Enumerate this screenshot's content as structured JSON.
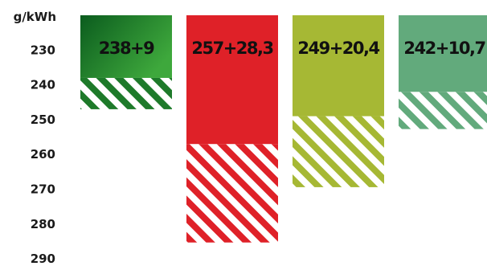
{
  "chart_data": {
    "type": "bar",
    "stacked": true,
    "unit": "g/kWh",
    "y_ticks": [
      230,
      240,
      250,
      260,
      270,
      280,
      290
    ],
    "ylim": [
      220,
      290
    ],
    "y_inverted": true,
    "grid": false,
    "bars": [
      {
        "label": "238+9",
        "base": 238,
        "extra": 9,
        "color_start": "#0b5c1e",
        "color_end": "#3ea83c",
        "gradient": true,
        "stripe_color": "#1e7a2a"
      },
      {
        "label": "257+28,3",
        "base": 257,
        "extra": 28.3,
        "color_start": "#df2128",
        "color_end": "#df2128",
        "gradient": false,
        "stripe_color": "#df2128"
      },
      {
        "label": "249+20,4",
        "base": 249,
        "extra": 20.4,
        "color_start": "#a6b834",
        "color_end": "#a6b834",
        "gradient": false,
        "stripe_color": "#a6b834"
      },
      {
        "label": "242+10,7",
        "base": 242,
        "extra": 10.7,
        "color_start": "#62aa7c",
        "color_end": "#62aa7c",
        "gradient": false,
        "stripe_color": "#62aa7c"
      }
    ]
  }
}
